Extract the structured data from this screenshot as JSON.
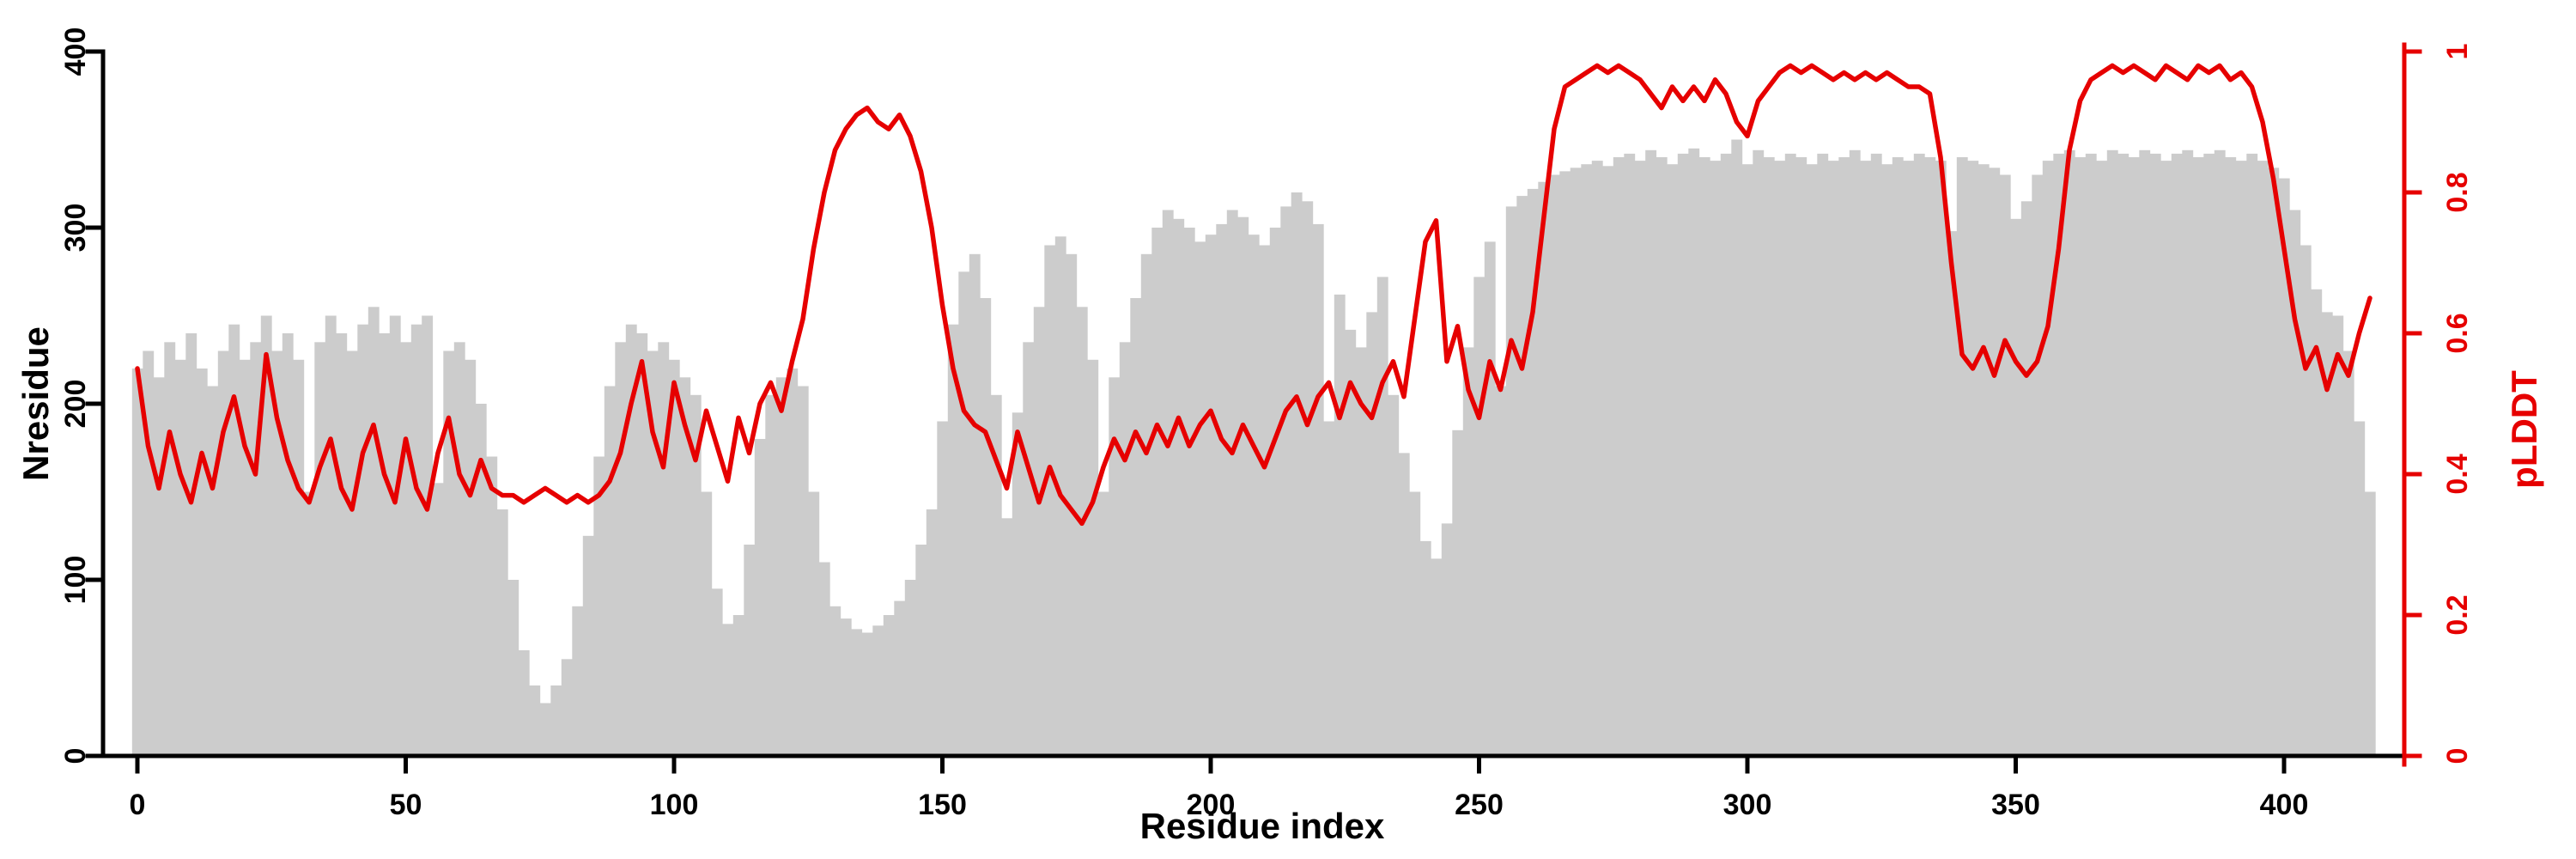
{
  "figure": {
    "background": "#ffffff"
  },
  "colors": {
    "bar": "#cccccc",
    "line": "#e60000",
    "axis": "#000000"
  },
  "chart_data": {
    "type": "bar",
    "title": "",
    "xlabel": "Residue index",
    "ylabel_left": "Nresidue",
    "ylabel_right": "pLDDT",
    "x_range": [
      0,
      420
    ],
    "x_ticks": [
      0,
      50,
      100,
      150,
      200,
      250,
      300,
      350,
      400
    ],
    "y_left_range": [
      0,
      400
    ],
    "y_left_ticks": [
      0,
      100,
      200,
      300,
      400
    ],
    "y_right_range": [
      0,
      1
    ],
    "y_right_ticks": [
      0,
      0.2,
      0.4,
      0.6,
      0.8,
      1
    ],
    "x_start": 0,
    "x_step": 2,
    "grid": false,
    "legend": "none",
    "series": [
      {
        "name": "Nresidue",
        "type": "bar",
        "axis": "left",
        "color": "#cccccc",
        "values": [
          220,
          230,
          215,
          235,
          225,
          240,
          220,
          210,
          230,
          245,
          225,
          235,
          250,
          230,
          240,
          225,
          150,
          235,
          250,
          240,
          230,
          245,
          255,
          240,
          250,
          235,
          245,
          250,
          155,
          230,
          235,
          225,
          200,
          170,
          140,
          100,
          60,
          40,
          30,
          40,
          55,
          85,
          125,
          170,
          210,
          235,
          245,
          240,
          230,
          235,
          225,
          215,
          205,
          150,
          95,
          75,
          80,
          120,
          180,
          205,
          215,
          220,
          210,
          150,
          110,
          85,
          78,
          72,
          70,
          74,
          80,
          88,
          100,
          120,
          140,
          190,
          245,
          275,
          285,
          260,
          205,
          135,
          195,
          235,
          255,
          290,
          295,
          285,
          255,
          225,
          150,
          215,
          235,
          260,
          285,
          300,
          310,
          305,
          300,
          292,
          296,
          302,
          310,
          306,
          296,
          290,
          300,
          312,
          320,
          315,
          302,
          190,
          262,
          242,
          232,
          252,
          272,
          205,
          172,
          150,
          122,
          112,
          132,
          185,
          232,
          272,
          292,
          210,
          312,
          318,
          322,
          326,
          330,
          332,
          334,
          336,
          338,
          335,
          340,
          342,
          338,
          344,
          340,
          336,
          342,
          345,
          340,
          338,
          342,
          350,
          336,
          344,
          340,
          338,
          342,
          340,
          336,
          342,
          338,
          340,
          344,
          338,
          342,
          336,
          340,
          338,
          342,
          340,
          338,
          298,
          340,
          338,
          336,
          334,
          330,
          305,
          315,
          330,
          338,
          342,
          344,
          340,
          342,
          338,
          344,
          342,
          340,
          344,
          342,
          338,
          342,
          344,
          340,
          342,
          344,
          340,
          338,
          342,
          338,
          334,
          328,
          310,
          290,
          265,
          252,
          250,
          230,
          190,
          150
        ]
      },
      {
        "name": "pLDDT",
        "type": "line",
        "axis": "right",
        "color": "#e60000",
        "values": [
          0.55,
          0.44,
          0.38,
          0.46,
          0.4,
          0.36,
          0.43,
          0.38,
          0.46,
          0.51,
          0.44,
          0.4,
          0.57,
          0.48,
          0.42,
          0.38,
          0.36,
          0.41,
          0.45,
          0.38,
          0.35,
          0.43,
          0.47,
          0.4,
          0.36,
          0.45,
          0.38,
          0.35,
          0.43,
          0.48,
          0.4,
          0.37,
          0.42,
          0.38,
          0.37,
          0.37,
          0.36,
          0.37,
          0.38,
          0.37,
          0.36,
          0.37,
          0.36,
          0.37,
          0.39,
          0.43,
          0.5,
          0.56,
          0.46,
          0.41,
          0.53,
          0.47,
          0.42,
          0.49,
          0.44,
          0.39,
          0.48,
          0.43,
          0.5,
          0.53,
          0.49,
          0.56,
          0.62,
          0.72,
          0.8,
          0.86,
          0.89,
          0.91,
          0.92,
          0.9,
          0.89,
          0.91,
          0.88,
          0.83,
          0.75,
          0.64,
          0.55,
          0.49,
          0.47,
          0.46,
          0.42,
          0.38,
          0.46,
          0.41,
          0.36,
          0.41,
          0.37,
          0.35,
          0.33,
          0.36,
          0.41,
          0.45,
          0.42,
          0.46,
          0.43,
          0.47,
          0.44,
          0.48,
          0.44,
          0.47,
          0.49,
          0.45,
          0.43,
          0.47,
          0.44,
          0.41,
          0.45,
          0.49,
          0.51,
          0.47,
          0.51,
          0.53,
          0.48,
          0.53,
          0.5,
          0.48,
          0.53,
          0.56,
          0.51,
          0.62,
          0.73,
          0.76,
          0.56,
          0.61,
          0.52,
          0.48,
          0.56,
          0.52,
          0.59,
          0.55,
          0.63,
          0.76,
          0.89,
          0.95,
          0.96,
          0.97,
          0.98,
          0.97,
          0.98,
          0.97,
          0.96,
          0.94,
          0.92,
          0.95,
          0.93,
          0.95,
          0.93,
          0.96,
          0.94,
          0.9,
          0.88,
          0.93,
          0.95,
          0.97,
          0.98,
          0.97,
          0.98,
          0.97,
          0.96,
          0.97,
          0.96,
          0.97,
          0.96,
          0.97,
          0.96,
          0.95,
          0.95,
          0.94,
          0.85,
          0.7,
          0.57,
          0.55,
          0.58,
          0.54,
          0.59,
          0.56,
          0.54,
          0.56,
          0.61,
          0.72,
          0.86,
          0.93,
          0.96,
          0.97,
          0.98,
          0.97,
          0.98,
          0.97,
          0.96,
          0.98,
          0.97,
          0.96,
          0.98,
          0.97,
          0.98,
          0.96,
          0.97,
          0.95,
          0.9,
          0.82,
          0.72,
          0.62,
          0.55,
          0.58,
          0.52,
          0.57,
          0.54,
          0.6,
          0.65
        ]
      }
    ]
  }
}
